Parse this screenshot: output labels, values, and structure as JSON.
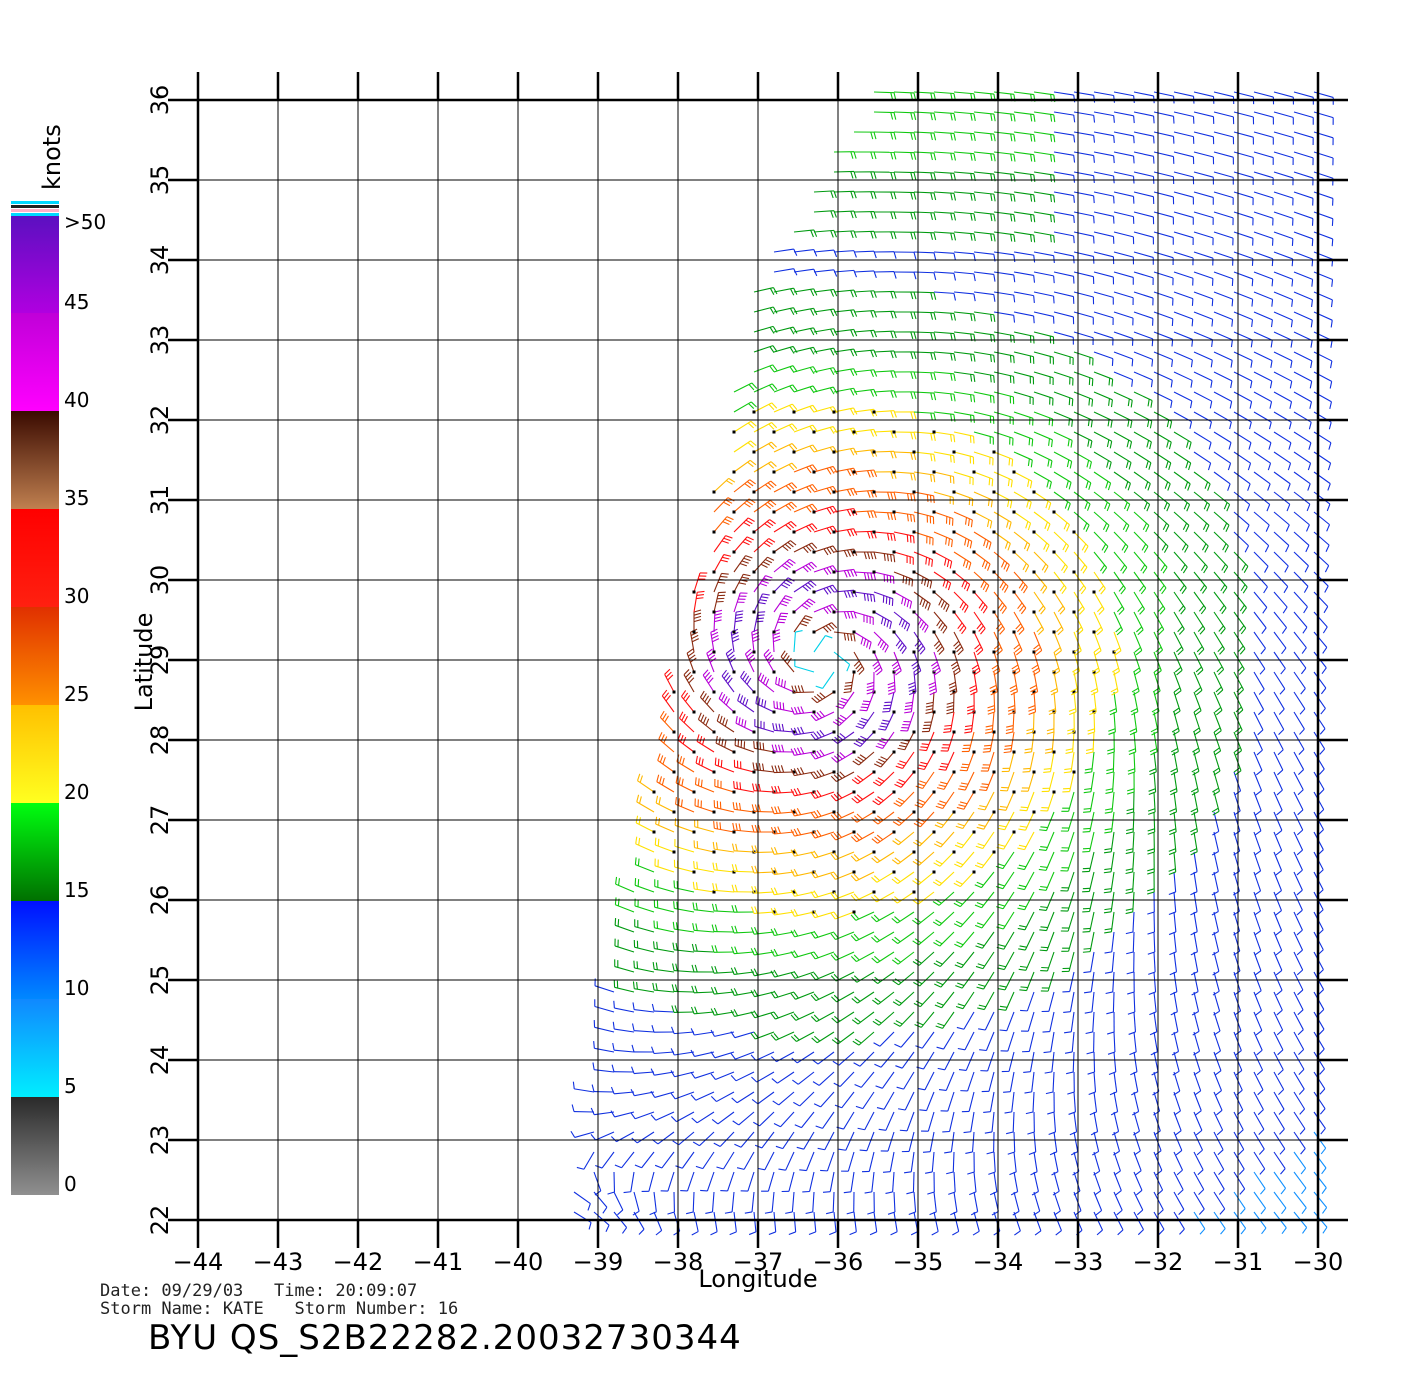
{
  "map": {
    "lon_ticks": [
      "−44",
      "−43",
      "−42",
      "−41",
      "−40",
      "−39",
      "−38",
      "−37",
      "−36",
      "−35",
      "−34",
      "−33",
      "−32",
      "−31",
      "−30"
    ],
    "lat_ticks": [
      "22",
      "23",
      "24",
      "25",
      "26",
      "27",
      "28",
      "29",
      "30",
      "31",
      "32",
      "33",
      "34",
      "35",
      "36"
    ],
    "lon_range": [
      -44,
      -30
    ],
    "lat_range": [
      22,
      36
    ],
    "x_label": "Longitude",
    "y_label": "Latitude",
    "storm_center": {
      "lon": -36.2,
      "lat": 29.0
    }
  },
  "legend": {
    "unit": "knots",
    "labels": [
      ">50",
      "45",
      "40",
      "35",
      "30",
      "25",
      "20",
      "15",
      "10",
      "5",
      "0"
    ],
    "bands": [
      {
        "from": 0,
        "to": 5,
        "top": "#2a2a2a",
        "bottom": "#909090"
      },
      {
        "from": 5,
        "to": 10,
        "top": "#1088ff",
        "bottom": "#00eeff"
      },
      {
        "from": 10,
        "to": 15,
        "top": "#0010ff",
        "bottom": "#0088ff"
      },
      {
        "from": 15,
        "to": 20,
        "top": "#00ff10",
        "bottom": "#007000"
      },
      {
        "from": 20,
        "to": 25,
        "top": "#ffc000",
        "bottom": "#ffff20"
      },
      {
        "from": 25,
        "to": 30,
        "top": "#e03000",
        "bottom": "#ff9000"
      },
      {
        "from": 30,
        "to": 35,
        "top": "#ff0000",
        "bottom": "#ff2010"
      },
      {
        "from": 35,
        "to": 40,
        "top": "#3a0a00",
        "bottom": "#c08050"
      },
      {
        "from": 40,
        "to": 45,
        "top": "#c000d8",
        "bottom": "#ff00ff"
      },
      {
        "from": 45,
        "to": 50,
        "top": "#5a10c0",
        "bottom": "#b000e0"
      }
    ]
  },
  "footer": {
    "line1": "Date: 09/29/03   Time: 20:09:07",
    "line2": "Storm Name: KATE   Storm Number: 16",
    "title": "BYU  QS_S2B22282.20032730344"
  }
}
